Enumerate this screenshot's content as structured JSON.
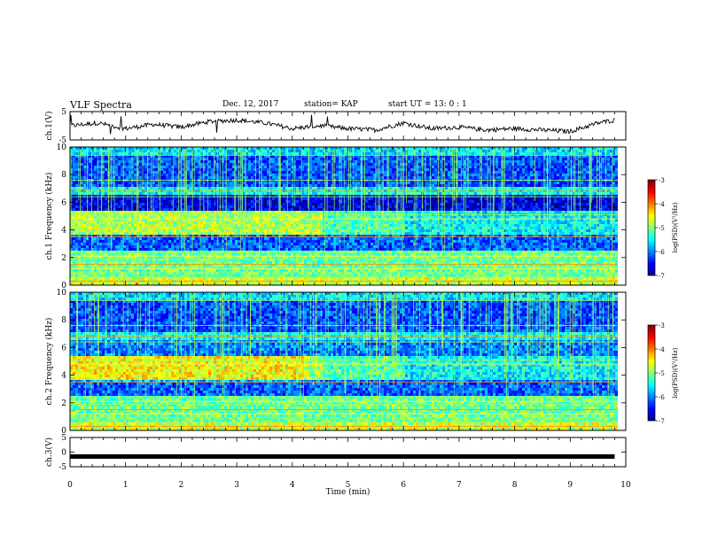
{
  "header": {
    "title": "VLF Spectra",
    "date": "Dec. 12, 2017",
    "station": "station= KAP",
    "start": "start  UT =   13: 0  : 1"
  },
  "chart_data": [
    {
      "panel": "ch1-voltage",
      "type": "line",
      "ylabel": "ch.1(V)",
      "ylim": [
        -5,
        5
      ],
      "yticks": [
        5,
        -5
      ],
      "x_unit": "min",
      "x": [
        0,
        0.5,
        1,
        1.5,
        2,
        2.5,
        3,
        3.5,
        4,
        4.5,
        5,
        5.5,
        6,
        6.5,
        7,
        7.5,
        8,
        8.5,
        9,
        9.5,
        9.8
      ],
      "y": [
        0,
        1,
        -1,
        0.5,
        -0.5,
        1.5,
        2,
        1,
        -1,
        0,
        -1,
        -1.5,
        1,
        -1,
        -0.5,
        -1.5,
        -1,
        -1.5,
        -2,
        1,
        2
      ]
    },
    {
      "panel": "ch1-spectrogram",
      "type": "heatmap",
      "ylabel": "ch.1 Frequency (kHz)",
      "ylim": [
        0,
        10
      ],
      "yticks": [
        0,
        2,
        4,
        6,
        8,
        10
      ],
      "colorbar": {
        "label": "log(PSD)(V²/Hz)",
        "range": [
          -7,
          -3
        ],
        "ticks": [
          -3,
          -4,
          -5,
          -6,
          -7
        ]
      }
    },
    {
      "panel": "ch2-spectrogram",
      "type": "heatmap",
      "ylabel": "ch.2 Frequency (kHz)",
      "ylim": [
        0,
        10
      ],
      "yticks": [
        0,
        2,
        4,
        6,
        8,
        10
      ],
      "colorbar": {
        "label": "log(PSD)(V²/Hz)",
        "range": [
          -7,
          -3
        ],
        "ticks": [
          -3,
          -4,
          -5,
          -6,
          -7
        ]
      }
    },
    {
      "panel": "ch3-voltage",
      "type": "line",
      "ylabel": "ch.3(V)",
      "ylim": [
        -5,
        5
      ],
      "yticks": [
        5,
        0,
        -5
      ],
      "x_unit": "min",
      "x": [
        0,
        9.8
      ],
      "y": [
        -1.5,
        -1.5
      ]
    }
  ],
  "x_axis": {
    "label": "Time  (min)",
    "range": [
      0,
      10
    ],
    "ticks": [
      0,
      1,
      2,
      3,
      4,
      5,
      6,
      7,
      8,
      9,
      10
    ]
  }
}
